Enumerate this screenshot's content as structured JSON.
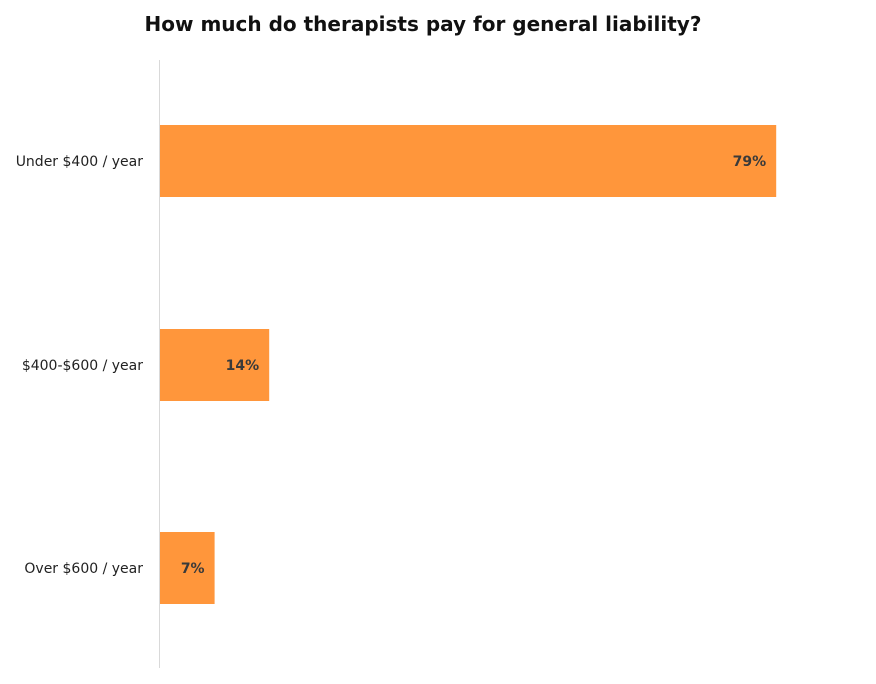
{
  "chart_data": {
    "type": "bar",
    "orientation": "horizontal",
    "title": "How much do therapists pay for general liability?",
    "categories": [
      "Under $400 / year",
      "$400-$600 / year",
      "Over $600 / year"
    ],
    "values": [
      79,
      14,
      7
    ],
    "data_labels": [
      "79%",
      "14%",
      "7%"
    ],
    "xlim": [
      0,
      100
    ],
    "unit": "%",
    "grid": false,
    "legend": "none",
    "bar_color": "#FF963B",
    "label_color": "#3A3A3A"
  }
}
